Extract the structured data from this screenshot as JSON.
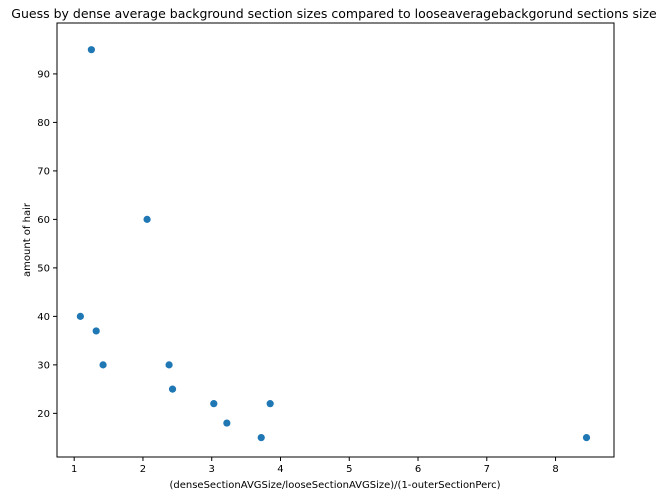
{
  "chart_data": {
    "type": "scatter",
    "title": "Guess by dense average background section sizes compared to looseaveragebackgorund sections size",
    "xlabel": "(denseSectionAVGSize/looseSectionAVGSize)/(1-outerSectionPerc)",
    "ylabel": "amount of hair",
    "xlim": [
      0.75,
      8.85
    ],
    "ylim": [
      11,
      100.5
    ],
    "xticks": [
      1,
      2,
      3,
      4,
      5,
      6,
      7,
      8
    ],
    "yticks": [
      20,
      30,
      40,
      50,
      60,
      70,
      80,
      90
    ],
    "grid": false,
    "marker_color": "#1f77b4",
    "points": [
      {
        "x": 1.25,
        "y": 95
      },
      {
        "x": 2.06,
        "y": 60
      },
      {
        "x": 1.09,
        "y": 40
      },
      {
        "x": 1.32,
        "y": 37
      },
      {
        "x": 1.42,
        "y": 30
      },
      {
        "x": 2.38,
        "y": 30
      },
      {
        "x": 2.43,
        "y": 25
      },
      {
        "x": 3.03,
        "y": 22
      },
      {
        "x": 3.85,
        "y": 22
      },
      {
        "x": 3.22,
        "y": 18
      },
      {
        "x": 3.72,
        "y": 15
      },
      {
        "x": 8.45,
        "y": 15
      }
    ]
  }
}
